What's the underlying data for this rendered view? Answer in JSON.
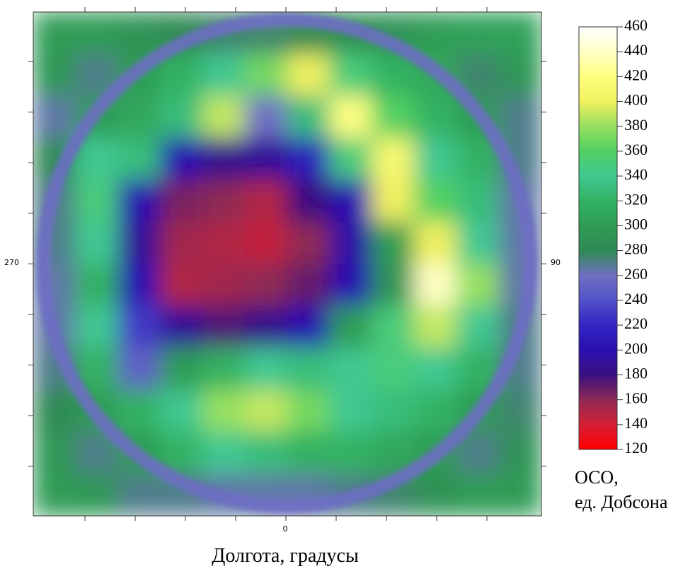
{
  "chart_data": {
    "type": "heatmap",
    "xlabel": "Долгота, градусы",
    "lon_labels": {
      "left": "270",
      "right": "90",
      "bottom": "0"
    },
    "colorbar_label": [
      "ОСО,",
      "ед. Добсона"
    ],
    "clim": [
      120,
      460
    ],
    "cticks": [
      120,
      140,
      160,
      180,
      200,
      220,
      240,
      260,
      280,
      300,
      320,
      340,
      360,
      380,
      400,
      420,
      440,
      460
    ],
    "colorscale": [
      {
        "value": 120,
        "color": "#ff0000"
      },
      {
        "value": 140,
        "color": "#d42035"
      },
      {
        "value": 160,
        "color": "#8e2a55"
      },
      {
        "value": 180,
        "color": "#3a1080"
      },
      {
        "value": 200,
        "color": "#2a10b0"
      },
      {
        "value": 220,
        "color": "#3424c4"
      },
      {
        "value": 240,
        "color": "#5252c8"
      },
      {
        "value": 260,
        "color": "#7070c4"
      },
      {
        "value": 280,
        "color": "#2e8a52"
      },
      {
        "value": 300,
        "color": "#2e9c55"
      },
      {
        "value": 320,
        "color": "#32b262"
      },
      {
        "value": 340,
        "color": "#40c892"
      },
      {
        "value": 360,
        "color": "#52d062"
      },
      {
        "value": 380,
        "color": "#96e060"
      },
      {
        "value": 400,
        "color": "#f0f060"
      },
      {
        "value": 420,
        "color": "#ffff80"
      },
      {
        "value": 440,
        "color": "#ffffc4"
      },
      {
        "value": 460,
        "color": "#ffffff"
      }
    ],
    "ring_value": 258,
    "z": [
      [
        300,
        300,
        290,
        280,
        275,
        275,
        280,
        285,
        290,
        300,
        305,
        305
      ],
      [
        295,
        270,
        300,
        320,
        340,
        370,
        400,
        350,
        320,
        310,
        275,
        295
      ],
      [
        265,
        300,
        310,
        330,
        390,
        260,
        330,
        420,
        360,
        320,
        300,
        270
      ],
      [
        280,
        340,
        330,
        200,
        185,
        190,
        210,
        350,
        410,
        340,
        320,
        270
      ],
      [
        270,
        350,
        200,
        165,
        160,
        150,
        180,
        200,
        400,
        360,
        330,
        265
      ],
      [
        270,
        340,
        190,
        155,
        150,
        145,
        160,
        195,
        300,
        400,
        340,
        265
      ],
      [
        265,
        320,
        200,
        150,
        155,
        160,
        170,
        200,
        290,
        440,
        380,
        265
      ],
      [
        265,
        340,
        230,
        190,
        175,
        185,
        200,
        300,
        350,
        390,
        340,
        270
      ],
      [
        270,
        320,
        250,
        300,
        320,
        340,
        330,
        340,
        350,
        340,
        320,
        270
      ],
      [
        280,
        300,
        320,
        340,
        380,
        390,
        370,
        340,
        330,
        320,
        300,
        275
      ],
      [
        295,
        270,
        300,
        320,
        340,
        330,
        320,
        320,
        310,
        300,
        270,
        290
      ],
      [
        300,
        295,
        270,
        270,
        265,
        265,
        265,
        270,
        275,
        290,
        300,
        300
      ]
    ]
  }
}
